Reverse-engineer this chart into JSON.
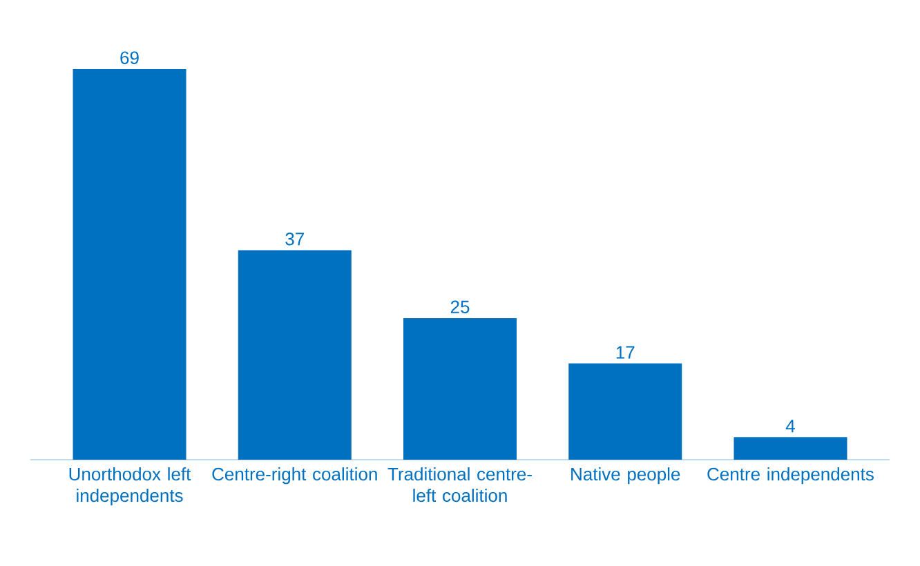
{
  "chart_data": {
    "type": "bar",
    "categories": [
      "Unorthodox left independents",
      "Centre-right coalition",
      "Traditional centre-left coalition",
      "Native people",
      "Centre independents"
    ],
    "values": [
      69,
      37,
      25,
      17,
      4
    ],
    "color": "#0070c0",
    "data_labels": true
  }
}
